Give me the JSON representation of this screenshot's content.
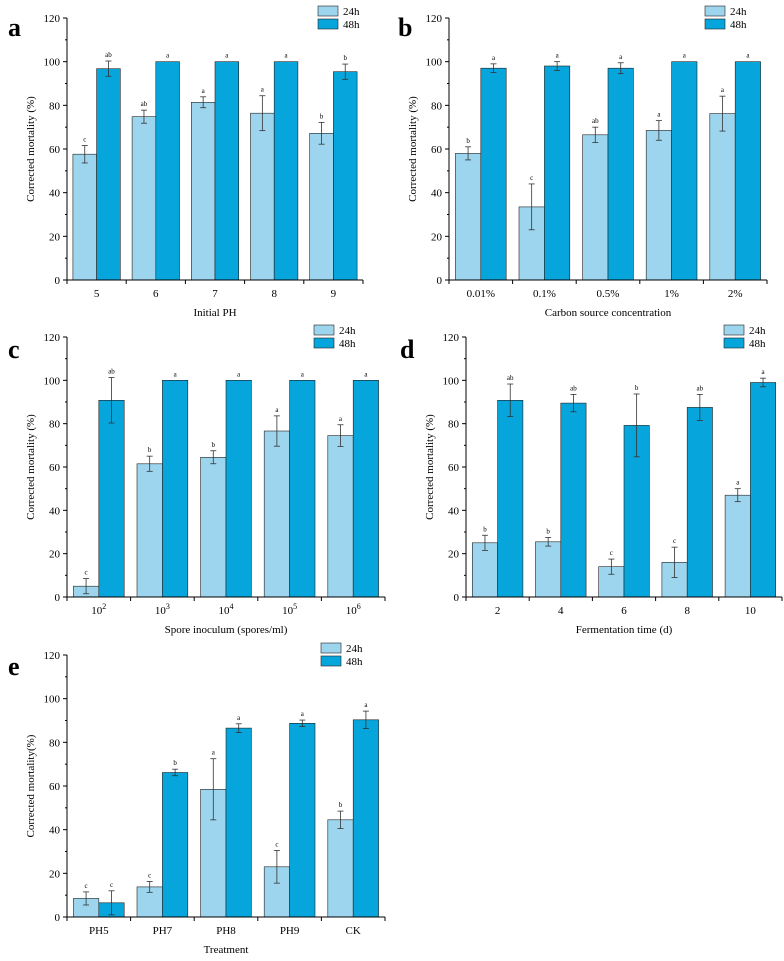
{
  "colors": {
    "s24": "#9dd5ee",
    "s48": "#06a6dd",
    "err": "#333333",
    "axis": "#000000"
  },
  "chart_data": [
    {
      "panel": "a",
      "type": "bar",
      "title": "",
      "xlabel": "Initial PH",
      "ylabel": "Corrected mortality (%)",
      "ylim": [
        0,
        120
      ],
      "yticks": [
        0,
        20,
        40,
        60,
        80,
        100,
        120
      ],
      "categories": [
        "5",
        "6",
        "7",
        "8",
        "9"
      ],
      "series": [
        {
          "name": "24h",
          "values": [
            57.6,
            74.8,
            81.4,
            76.4,
            67.2
          ],
          "errors": [
            4.0,
            3.0,
            2.5,
            8.0,
            5.0
          ],
          "labels": [
            "c",
            "ab",
            "a",
            "a",
            "b"
          ]
        },
        {
          "name": "48h",
          "values": [
            96.8,
            100,
            100,
            100,
            95.4
          ],
          "errors": [
            3.5,
            0,
            0,
            0,
            3.5
          ],
          "labels": [
            "ab",
            "a",
            "a",
            "a",
            "b"
          ]
        }
      ]
    },
    {
      "panel": "b",
      "type": "bar",
      "title": "",
      "xlabel": "Carbon source concentration",
      "ylabel": "Corrected mortality (%)",
      "ylim": [
        0,
        120
      ],
      "yticks": [
        0,
        20,
        40,
        60,
        80,
        100,
        120
      ],
      "categories": [
        "0.01%",
        "0.1%",
        "0.5%",
        "1%",
        "2%"
      ],
      "series": [
        {
          "name": "24h",
          "values": [
            58.0,
            33.5,
            66.5,
            68.5,
            76.2
          ],
          "errors": [
            3.0,
            10.5,
            3.5,
            4.5,
            8.0
          ],
          "labels": [
            "b",
            "c",
            "ab",
            "a",
            "a"
          ]
        },
        {
          "name": "48h",
          "values": [
            97.0,
            98.0,
            97.0,
            100,
            100
          ],
          "errors": [
            2.0,
            2.0,
            2.5,
            0,
            0
          ],
          "labels": [
            "a",
            "a",
            "a",
            "a",
            "a"
          ]
        }
      ]
    },
    {
      "panel": "c",
      "type": "bar",
      "title": "",
      "xlabel": "Spore inoculum (spores/ml)",
      "ylabel": "Corrected mortality (%)",
      "ylim": [
        0,
        120
      ],
      "yticks": [
        0,
        20,
        40,
        60,
        80,
        100,
        120
      ],
      "categories": [
        "10",
        "10",
        "10",
        "10",
        "10"
      ],
      "category_superscripts": [
        "2",
        "3",
        "4",
        "5",
        "6"
      ],
      "series": [
        {
          "name": "24h",
          "values": [
            5.0,
            61.5,
            64.5,
            76.6,
            74.5
          ],
          "errors": [
            3.5,
            3.5,
            3.0,
            7.0,
            5.0
          ],
          "labels": [
            "c",
            "b",
            "b",
            "a",
            "a"
          ]
        },
        {
          "name": "48h",
          "values": [
            90.8,
            100,
            100,
            100,
            100
          ],
          "errors": [
            10.5,
            0,
            0,
            0,
            0
          ],
          "labels": [
            "ab",
            "a",
            "a",
            "a",
            "a"
          ]
        }
      ]
    },
    {
      "panel": "d",
      "type": "bar",
      "title": "",
      "xlabel": "Fermentation time (d)",
      "ylabel": "Corrected mortality (%)",
      "ylim": [
        0,
        120
      ],
      "yticks": [
        0,
        20,
        40,
        60,
        80,
        100,
        120
      ],
      "categories": [
        "2",
        "4",
        "6",
        "8",
        "10"
      ],
      "series": [
        {
          "name": "24h",
          "values": [
            25.0,
            25.5,
            14.0,
            16.0,
            47.0
          ],
          "errors": [
            3.5,
            2.0,
            3.5,
            7.0,
            3.0
          ],
          "labels": [
            "b",
            "b",
            "c",
            "c",
            "a"
          ]
        },
        {
          "name": "48h",
          "values": [
            90.8,
            89.5,
            79.2,
            87.5,
            99.0
          ],
          "errors": [
            7.5,
            4.0,
            14.5,
            6.0,
            2.0
          ],
          "labels": [
            "ab",
            "ab",
            "b",
            "ab",
            "a"
          ]
        }
      ]
    },
    {
      "panel": "e",
      "type": "bar",
      "title": "",
      "xlabel": "Treatment",
      "ylabel": "Corrected mortality(%)",
      "ylim": [
        0,
        120
      ],
      "yticks": [
        0,
        20,
        40,
        60,
        80,
        100,
        120
      ],
      "categories": [
        "PH5",
        "PH7",
        "PH8",
        "PH9",
        "CK"
      ],
      "series": [
        {
          "name": "24h",
          "values": [
            8.5,
            13.8,
            58.5,
            23.0,
            44.5
          ],
          "errors": [
            3.0,
            2.5,
            14.0,
            7.5,
            4.0
          ],
          "labels": [
            "c",
            "c",
            "a",
            "c",
            "b"
          ]
        },
        {
          "name": "48h",
          "values": [
            6.5,
            66.2,
            86.5,
            88.7,
            90.3
          ],
          "errors": [
            5.5,
            1.5,
            2.0,
            1.5,
            4.0
          ],
          "labels": [
            "c",
            "b",
            "a",
            "a",
            "a"
          ]
        }
      ]
    }
  ]
}
